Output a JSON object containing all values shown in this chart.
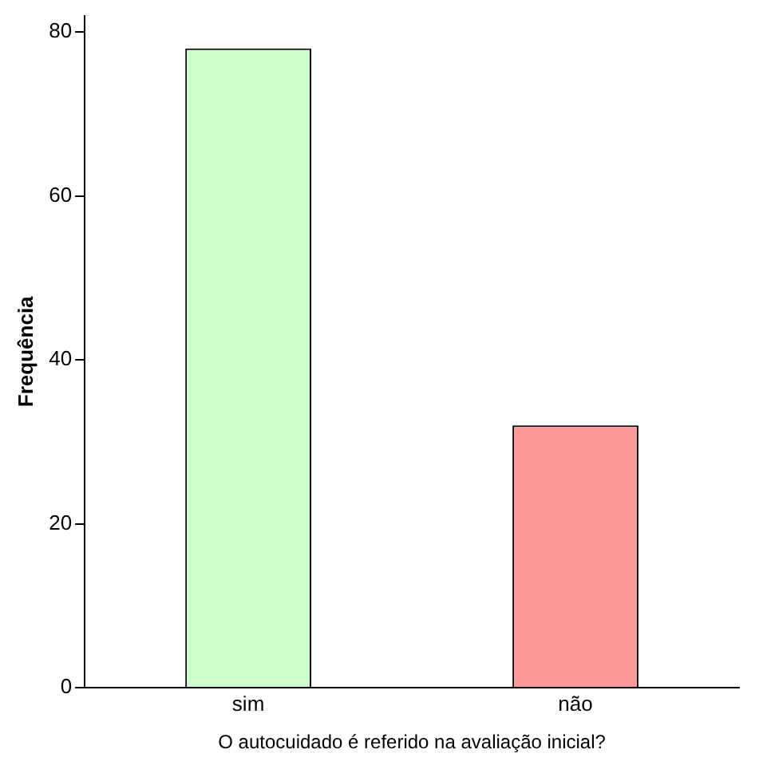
{
  "chart_data": {
    "type": "bar",
    "xlabel": "O autocuidado é referido na avaliação inicial?",
    "ylabel": "Frequência",
    "categories": [
      "sim",
      "não"
    ],
    "values": [
      78,
      32
    ],
    "colors": [
      "#ccffcc",
      "#ff9999"
    ],
    "ylim": [
      0,
      82
    ],
    "yticks": [
      0,
      20,
      40,
      60,
      80
    ],
    "grid": false,
    "legend": false
  }
}
